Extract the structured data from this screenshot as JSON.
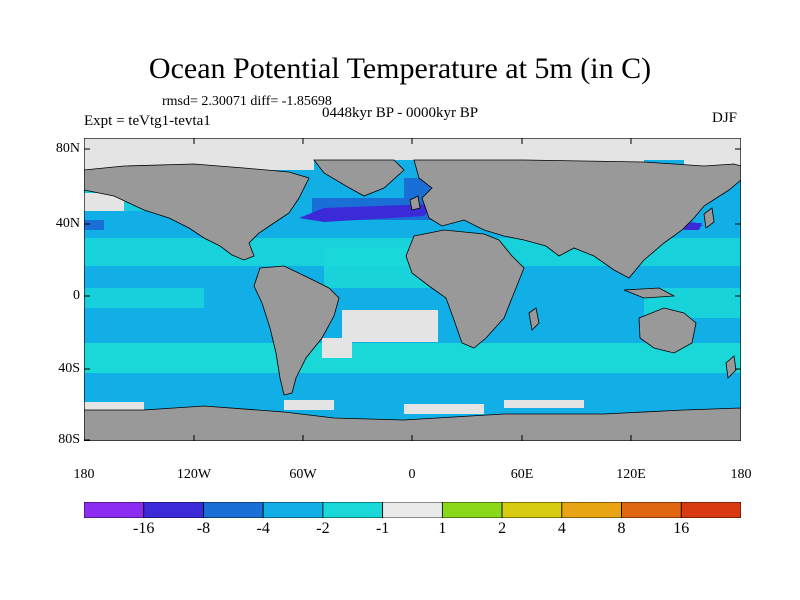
{
  "title": "Ocean Potential Temperature at 5m (in C)",
  "stats": "rmsd= 2.30071 diff= -1.85698",
  "periods": "0448kyr BP - 0000kyr BP",
  "experiment": "Expt = teVtg1-tevta1",
  "season": "DJF",
  "lat_labels": [
    "80N",
    "40N",
    "0",
    "40S",
    "80S"
  ],
  "lon_labels": [
    "180",
    "120W",
    "60W",
    "0",
    "60E",
    "120E",
    "180"
  ],
  "colorbar": {
    "labels": [
      "-16",
      "-8",
      "-4",
      "-2",
      "-1",
      "1",
      "2",
      "4",
      "8",
      "16"
    ],
    "colors": [
      "#8c2cf0",
      "#3a2ad8",
      "#1a6fd6",
      "#12aee6",
      "#1ad8d8",
      "#eaeaea",
      "#8ad81a",
      "#d8cc12",
      "#e8a412",
      "#e06612",
      "#d83a12"
    ]
  },
  "colors": {
    "land": "#999999",
    "sea_ice": "#e4e4e4",
    "ocean_main": "#12aee6",
    "ocean_mild": "#1ad8d8",
    "ocean_cold": "#1a6fd6",
    "ocean_coldest": "#3a2ad8"
  }
}
